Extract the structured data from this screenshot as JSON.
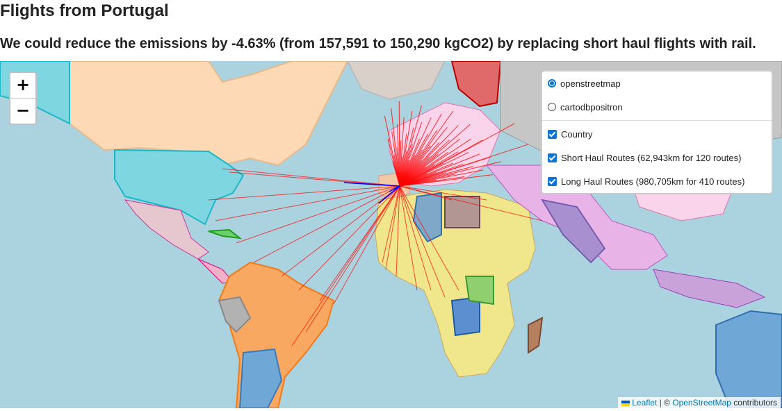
{
  "page": {
    "title": "Flights from Portugal",
    "subtitle": "We could reduce the emissions by -4.63% (from 157,591 to 150,290 kgCO2) by replacing short haul flights with rail."
  },
  "zoom": {
    "in_label": "+",
    "out_label": "−"
  },
  "layers": {
    "base": [
      {
        "label": "openstreetmap",
        "selected": true
      },
      {
        "label": "cartodbpositron",
        "selected": false
      }
    ],
    "overlays": [
      {
        "label": "Country",
        "checked": true
      },
      {
        "label": "Short Haul Routes (62,943km for 120 routes)",
        "checked": true
      },
      {
        "label": "Long Haul Routes (980,705km for 410 routes)",
        "checked": true
      }
    ]
  },
  "attribution": {
    "leaflet": "Leaflet",
    "separator": " | © ",
    "osm": "OpenStreetMap",
    "suffix": " contributors"
  },
  "colors": {
    "ocean": "#aad3df",
    "short_haul": "#0000ff",
    "long_haul": "#ff0000",
    "accent": "#0a74da"
  }
}
